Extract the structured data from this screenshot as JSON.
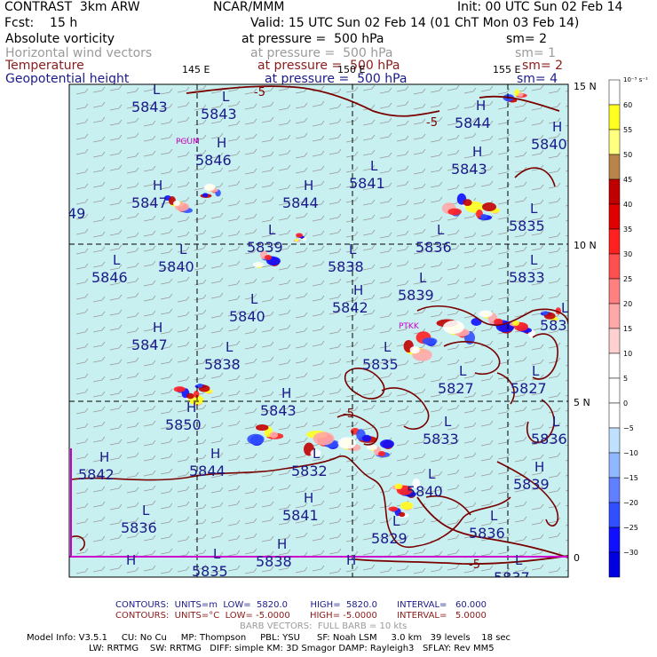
{
  "header": {
    "model": "CONTRAST  3km ARW",
    "center": "NCAR/MMM",
    "init": "Init: 00 UTC Sun 02 Feb 14",
    "fcst": "Fcst:    15 h",
    "valid": "Valid: 15 UTC Sun 02 Feb 14 (01 ChT Mon 03 Feb 14)",
    "rows": [
      {
        "name": "Absolute vorticity",
        "level": "at pressure =  500 hPa",
        "sm": "sm= 2",
        "cls": "blk"
      },
      {
        "name": "Horizontal wind vectors",
        "level": "at pressure =  500 hPa",
        "sm": "sm= 1",
        "cls": "gry"
      },
      {
        "name": "Temperature",
        "level": "at pressure =  500 hPa",
        "sm": "sm= 2",
        "cls": "red"
      },
      {
        "name": "Geopotential height",
        "level": "at pressure =  500 hPa",
        "sm": "sm= 4",
        "cls": "blu"
      }
    ]
  },
  "map": {
    "background": "#c8f0f0",
    "lon_labels": [
      "145 E",
      "150 E",
      "155 E"
    ],
    "lat_labels": [
      "15 N",
      "10 N",
      "5 N",
      "0"
    ],
    "stations": [
      "PGUM",
      "PTKK"
    ],
    "temp_labels": [
      "-5",
      "-5",
      "-5",
      "-5"
    ],
    "pressure_centers": [
      {
        "t": "L",
        "v": "5843"
      },
      {
        "t": "L",
        "v": "5843"
      },
      {
        "t": "H",
        "v": "5844"
      },
      {
        "t": "H",
        "v": "5840"
      },
      {
        "t": "H",
        "v": "5846"
      },
      {
        "t": "L",
        "v": "5841"
      },
      {
        "t": "H",
        "v": "5843"
      },
      {
        "t": "H",
        "v": "5847"
      },
      {
        "t": "H",
        "v": "5844"
      },
      {
        "t": "L",
        "v": "5835"
      },
      {
        "t": "",
        "v": "49"
      },
      {
        "t": "L",
        "v": "5839"
      },
      {
        "t": "L",
        "v": "5838"
      },
      {
        "t": "L",
        "v": "5836"
      },
      {
        "t": "L",
        "v": "5840"
      },
      {
        "t": "L",
        "v": "5846"
      },
      {
        "t": "L",
        "v": "5833"
      },
      {
        "t": "L",
        "v": "5840"
      },
      {
        "t": "H",
        "v": "5842"
      },
      {
        "t": "L",
        "v": "5839"
      },
      {
        "t": "L",
        "v": "583"
      },
      {
        "t": "H",
        "v": "5847"
      },
      {
        "t": "L",
        "v": "5838"
      },
      {
        "t": "L",
        "v": "5835"
      },
      {
        "t": "L",
        "v": "5827"
      },
      {
        "t": "L",
        "v": "5827"
      },
      {
        "t": "H",
        "v": "5850"
      },
      {
        "t": "H",
        "v": "5843"
      },
      {
        "t": "L",
        "v": "5833"
      },
      {
        "t": "L",
        "v": "5836"
      },
      {
        "t": "H",
        "v": "5842"
      },
      {
        "t": "H",
        "v": "5844"
      },
      {
        "t": "L",
        "v": "5832"
      },
      {
        "t": "L",
        "v": "5840"
      },
      {
        "t": "H",
        "v": "5839"
      },
      {
        "t": "L",
        "v": "5836"
      },
      {
        "t": "H",
        "v": "5841"
      },
      {
        "t": "L",
        "v": "5829"
      },
      {
        "t": "L",
        "v": "5836"
      },
      {
        "t": "H",
        "v": "5838"
      },
      {
        "t": "L",
        "v": "5835"
      },
      {
        "t": "H",
        "v": ""
      },
      {
        "t": "H",
        "v": ""
      },
      {
        "t": "L",
        "v": "5837"
      }
    ]
  },
  "legend": {
    "units": "10⁻⁵ s⁻¹",
    "ticks": [
      "60",
      "55",
      "50",
      "45",
      "40",
      "35",
      "30",
      "25",
      "20",
      "15",
      "10",
      "5",
      "0",
      "−5",
      "−10",
      "−15",
      "−20",
      "−25",
      "−30"
    ],
    "colors": [
      "#ffffff",
      "#ffff20",
      "#ffff80",
      "#b8844a",
      "#c00000",
      "#e00000",
      "#ff2020",
      "#ff5050",
      "#ff8080",
      "#ffa8a8",
      "#ffd0d0",
      "#ffffff",
      "#ffffff",
      "#ffffff",
      "#c0e0ff",
      "#90b8ff",
      "#6080ff",
      "#3050ff",
      "#1010ff",
      "#0000e0"
    ]
  },
  "footer": {
    "line1": "CONTOURS:  UNITS=m  LOW=  5820.0        HIGH=  5820.0       INTERVAL=   60.000",
    "line2": "CONTOURS:  UNITS=°C  LOW= -5.0000       HIGH= -5.0000       INTERVAL=   5.0000",
    "line3": "BARB VECTORS:  FULL BARB = 10 kts",
    "line4": "Model Info: V3.5.1     CU: No Cu     MP: Thompson     PBL: YSU      SF: Noah LSM     3.0 km   39 levels    18 sec",
    "line5": "LW: RRTMG    SW: RRTMG   DIFF: simple KM: 3D Smagor DAMP: Rayleigh3   SFLAY: Rev MM5"
  }
}
